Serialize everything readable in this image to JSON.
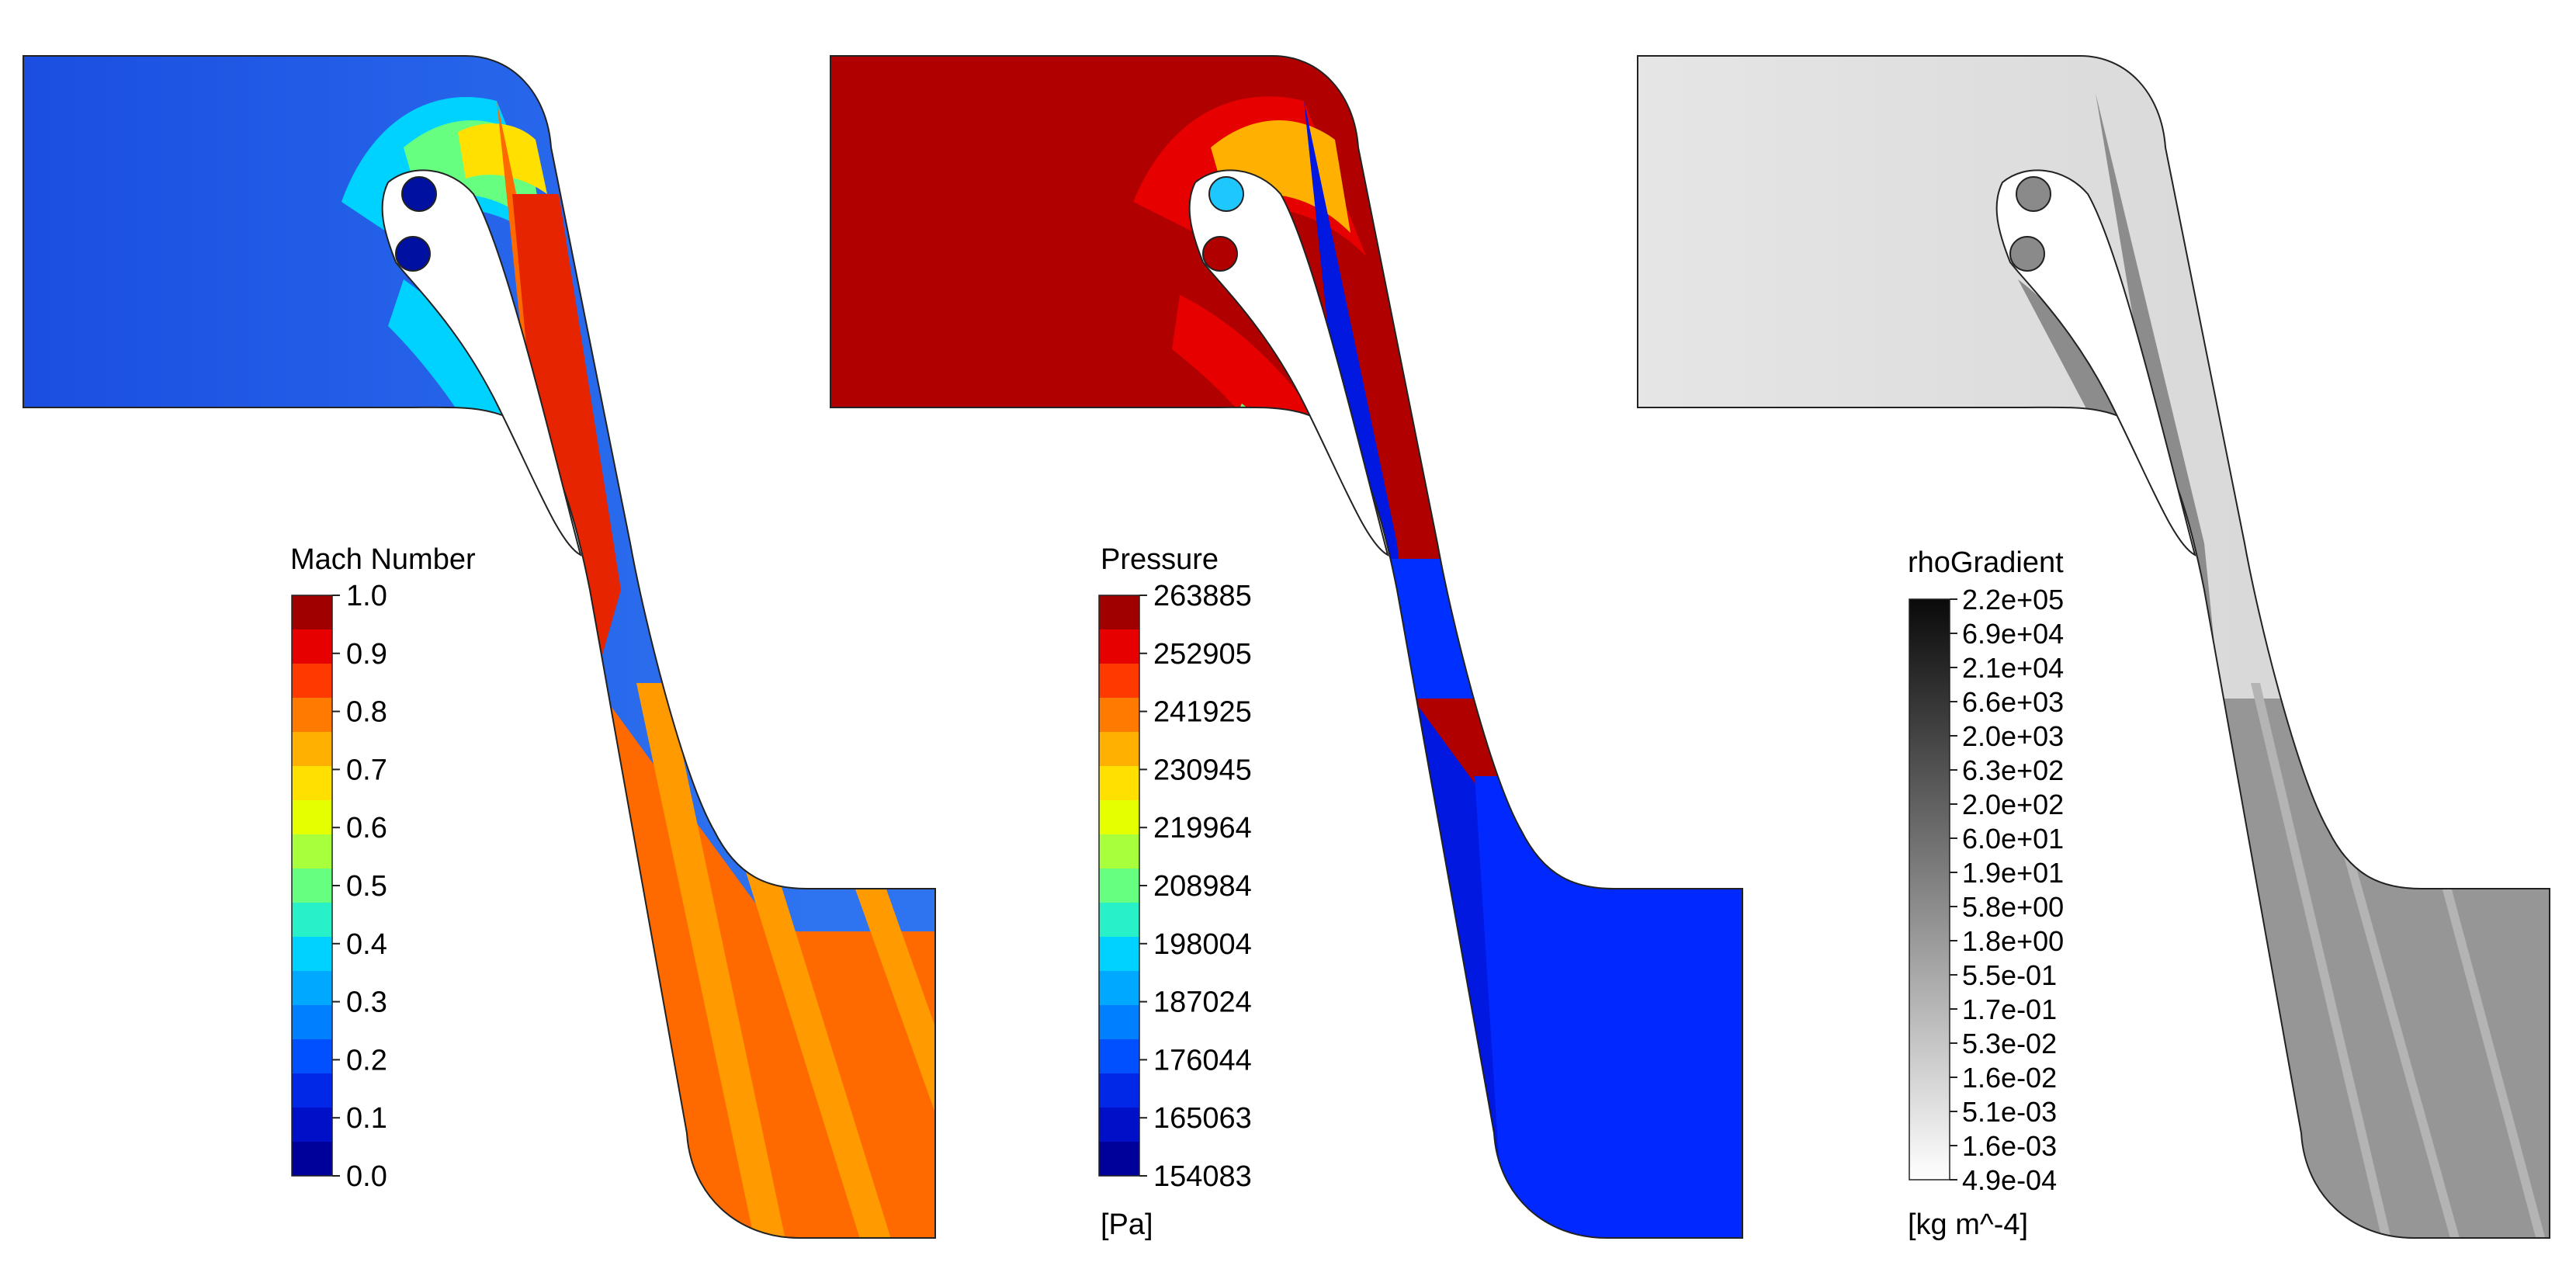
{
  "panels": [
    {
      "id": "mach",
      "legend": {
        "title": "Mach Number",
        "unit": "",
        "ticks": [
          "1.0",
          "0.9",
          "0.8",
          "0.7",
          "0.6",
          "0.5",
          "0.4",
          "0.3",
          "0.2",
          "0.1",
          "0.0"
        ],
        "colors": [
          "#a00000",
          "#e60000",
          "#ff3a00",
          "#ff7a00",
          "#ffb000",
          "#ffe000",
          "#e6ff00",
          "#a8ff3c",
          "#66ff80",
          "#28f0c8",
          "#00d2ff",
          "#00a8ff",
          "#0080ff",
          "#0050ff",
          "#0028e6",
          "#0010c8",
          "#00009a"
        ]
      },
      "field_colors": {
        "inlet": "#1a4de0",
        "inlet_light": "#2e74f0",
        "nozzle": "#ff6a00",
        "nozzle_high": "#e62400",
        "accel_a": "#00d2ff",
        "accel_b": "#66ff80",
        "accel_c": "#ffe000",
        "outlet_main": "#ff6200",
        "outlet_stripe": "#ff9a00",
        "holes": "#0010a0"
      }
    },
    {
      "id": "pressure",
      "legend": {
        "title": "Pressure",
        "unit": "[Pa]",
        "ticks": [
          "263885",
          "252905",
          "241925",
          "230945",
          "219964",
          "208984",
          "198004",
          "187024",
          "176044",
          "165063",
          "154083"
        ],
        "colors": [
          "#a00000",
          "#e60000",
          "#ff3a00",
          "#ff7a00",
          "#ffb000",
          "#ffe000",
          "#e6ff00",
          "#a8ff3c",
          "#66ff80",
          "#28f0c8",
          "#00d2ff",
          "#00a8ff",
          "#0080ff",
          "#0050ff",
          "#0028e6",
          "#0010c8",
          "#00009a"
        ]
      },
      "field_colors": {
        "inlet": "#b00000",
        "inlet_light": "#e60000",
        "nozzle": "#0018e0",
        "nozzle_high": "#0030ff",
        "accel_a": "#ffb000",
        "accel_b": "#66ff80",
        "accel_c": "#00a8ff",
        "outlet_main": "#0018f0",
        "outlet_stripe": "#0028ff",
        "holes_top": "#1ec8ff",
        "holes_bottom": "#b00000"
      }
    },
    {
      "id": "rhogradient",
      "legend": {
        "title": "rhoGradient",
        "unit": "[kg m^-4]",
        "ticks": [
          "2.2e+05",
          "6.9e+04",
          "2.1e+04",
          "6.6e+03",
          "2.0e+03",
          "6.3e+02",
          "2.0e+02",
          "6.0e+01",
          "1.9e+01",
          "5.8e+00",
          "1.8e+00",
          "5.5e-01",
          "1.7e-01",
          "5.3e-02",
          "1.6e-02",
          "5.1e-03",
          "1.6e-03",
          "4.9e-04"
        ],
        "gradient_top": "#0a0a0a",
        "gradient_bottom": "#ffffff"
      },
      "field_colors": {
        "inlet": "#d2d2d2",
        "inlet_light": "#e6e6e6",
        "nozzle": "#8c8c8c",
        "outlet_main": "#969696",
        "outlet_stripe": "#b4b4b4",
        "holes": "#8a8a8a"
      }
    }
  ]
}
